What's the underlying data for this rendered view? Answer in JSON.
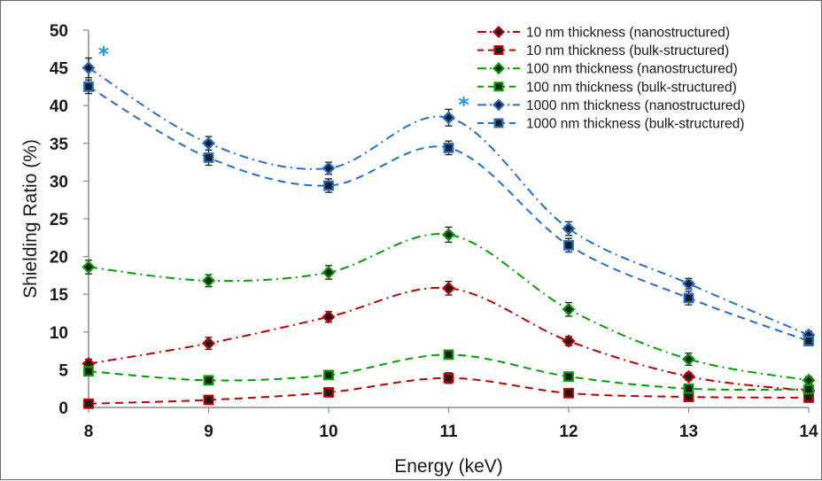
{
  "chart_data": {
    "type": "line",
    "xlabel": "Energy (keV)",
    "ylabel": "Shielding Ratio (%)",
    "x": [
      8,
      9,
      10,
      11,
      12,
      13,
      14
    ],
    "xlim": [
      8,
      14
    ],
    "ylim": [
      0,
      50
    ],
    "xticks": [
      "8",
      "9",
      "10",
      "11",
      "12",
      "13",
      "14"
    ],
    "yticks": [
      "0",
      "5",
      "10",
      "15",
      "20",
      "25",
      "30",
      "35",
      "40",
      "45",
      "50"
    ],
    "grid": false,
    "legend_position": "top-right",
    "series": [
      {
        "name": "10 nm thickness (nanostructured)",
        "color": "#c00000",
        "marker": "diamond",
        "line": "dash-dot",
        "values": [
          5.8,
          8.5,
          12.0,
          15.8,
          8.8,
          4.1,
          2.2
        ],
        "error": [
          0.6,
          0.8,
          0.7,
          0.9,
          0.6,
          0.5,
          0.4
        ]
      },
      {
        "name": "10 nm thickness (bulk-structured)",
        "color": "#c00000",
        "marker": "square",
        "line": "dash",
        "values": [
          0.5,
          1.0,
          2.0,
          3.9,
          1.9,
          1.4,
          1.3
        ],
        "error": [
          0.2,
          0.3,
          0.4,
          0.7,
          0.5,
          0.3,
          0.3
        ]
      },
      {
        "name": "100 nm thickness (nanostructured)",
        "color": "#00a000",
        "marker": "diamond",
        "line": "dash-dot",
        "values": [
          18.6,
          16.8,
          17.9,
          22.9,
          13.0,
          6.4,
          3.6
        ],
        "error": [
          0.9,
          0.8,
          0.9,
          1.0,
          0.9,
          0.8,
          0.5
        ]
      },
      {
        "name": "100 nm thickness (bulk-structured)",
        "color": "#00a000",
        "marker": "square",
        "line": "dash",
        "values": [
          4.8,
          3.6,
          4.3,
          7.0,
          4.1,
          2.5,
          2.4
        ],
        "error": [
          0.4,
          0.3,
          0.4,
          0.5,
          0.4,
          0.3,
          0.4
        ]
      },
      {
        "name": "1000 nm thickness (nanostructured)",
        "color": "#1f6fd6",
        "marker": "diamond",
        "line": "dash-dot",
        "values": [
          45.0,
          35.0,
          31.7,
          38.4,
          23.7,
          16.4,
          9.6
        ],
        "error": [
          1.3,
          0.9,
          0.8,
          1.1,
          0.9,
          0.7,
          0.5
        ]
      },
      {
        "name": "1000 nm thickness (bulk-structured)",
        "color": "#1f6fd6",
        "marker": "square",
        "line": "dash",
        "values": [
          42.5,
          33.1,
          29.4,
          34.4,
          21.5,
          14.5,
          8.8
        ],
        "error": [
          0.9,
          1.0,
          0.9,
          0.9,
          0.9,
          0.9,
          0.6
        ]
      }
    ],
    "annotations": [
      {
        "text": "*",
        "x": 8,
        "y": 47.5,
        "color": "#1f9be0"
      },
      {
        "text": "*",
        "x": 11,
        "y": 40.8,
        "color": "#1f9be0"
      }
    ]
  }
}
